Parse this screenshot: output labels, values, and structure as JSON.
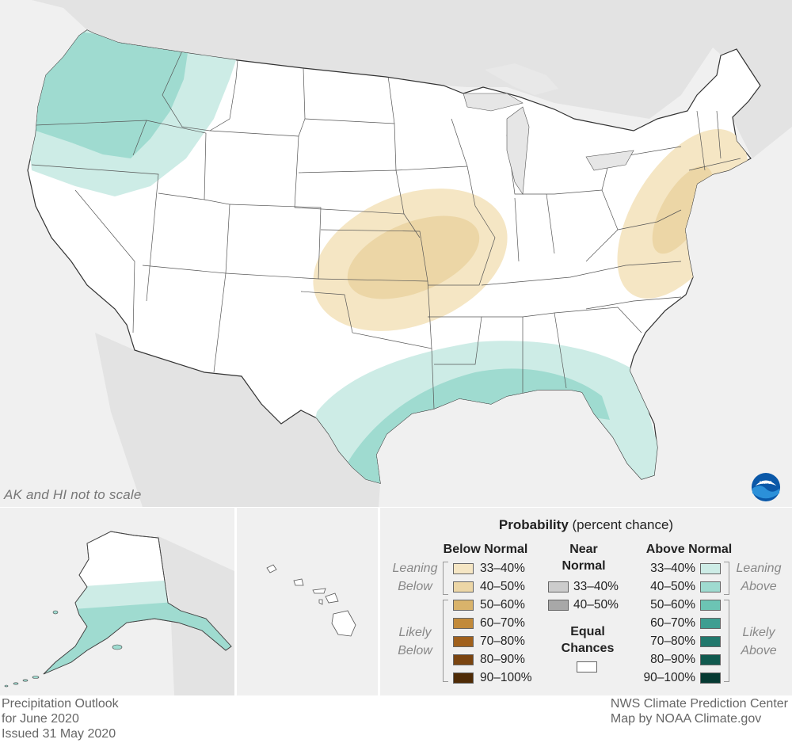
{
  "colors": {
    "below_33_40": "#f5e6c4",
    "below_40_50": "#ecd6a6",
    "below_50_60": "#d9b36b",
    "below_60_70": "#c28a3a",
    "below_70_80": "#a0601c",
    "below_80_90": "#7a4410",
    "below_90_100": "#4f2b06",
    "near_33_40": "#cccccc",
    "near_40_50": "#a8a8a8",
    "above_33_40": "#cdece6",
    "above_40_50": "#9fdbd0",
    "above_50_60": "#6cc4b4",
    "above_60_70": "#3e9e91",
    "above_70_80": "#21786c",
    "above_80_90": "#115a4f",
    "above_90_100": "#063a33",
    "equal_chances": "#ffffff",
    "background_land": "#e6e6e6",
    "ocean": "#f0f0f0"
  },
  "map": {
    "scale_note": "AK and HI not to scale",
    "logo_icon": "noaa-logo",
    "logo_text": "NOAA"
  },
  "legend": {
    "title_bold": "Probability",
    "title_rest": " (percent chance)",
    "below_heading": "Below Normal",
    "near_heading_line1": "Near",
    "near_heading_line2": "Normal",
    "above_heading": "Above Normal",
    "equal_heading_line1": "Equal",
    "equal_heading_line2": "Chances",
    "leaning_below_1": "Leaning",
    "leaning_below_2": "Below",
    "likely_below_1": "Likely",
    "likely_below_2": "Below",
    "leaning_above_1": "Leaning",
    "leaning_above_2": "Above",
    "likely_above_1": "Likely",
    "likely_above_2": "Above",
    "below_items": [
      "33–40%",
      "40–50%",
      "50–60%",
      "60–70%",
      "70–80%",
      "80–90%",
      "90–100%"
    ],
    "near_items": [
      "33–40%",
      "40–50%"
    ],
    "above_items": [
      "33–40%",
      "40–50%",
      "50–60%",
      "60–70%",
      "70–80%",
      "80–90%",
      "90–100%"
    ]
  },
  "footer": {
    "left_line1": "Precipitation Outlook",
    "left_line2": "for June 2020",
    "left_line3": "Issued 31 May 2020",
    "right_line1": "NWS Climate Prediction Center",
    "right_line2": "Map by NOAA Climate.gov"
  }
}
